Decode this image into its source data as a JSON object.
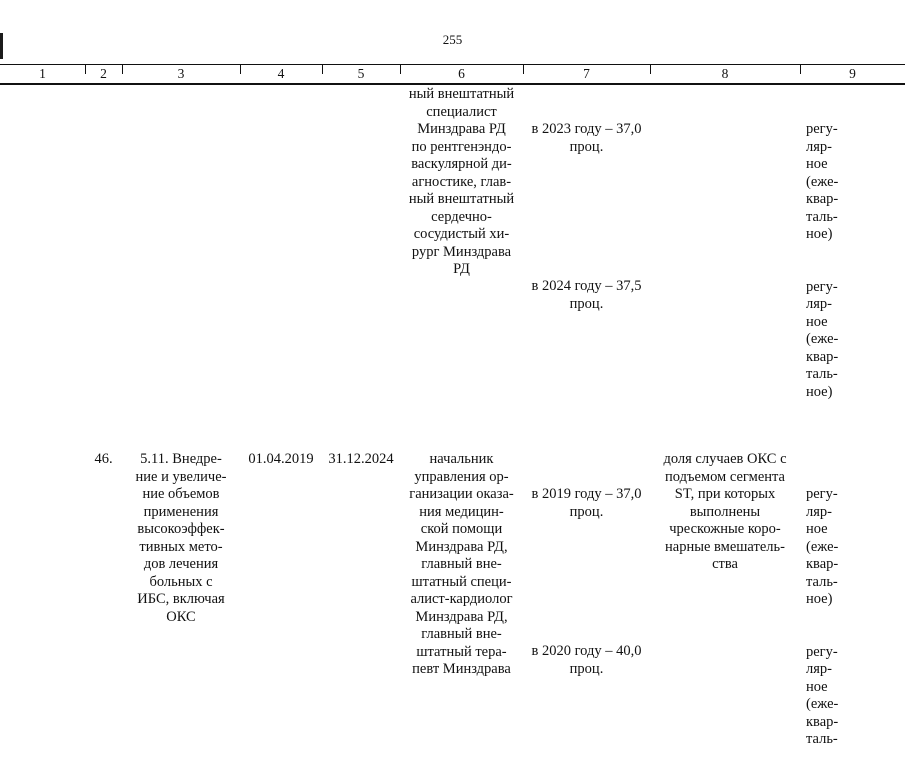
{
  "page": {
    "number": "255"
  },
  "table": {
    "headers": [
      "1",
      "2",
      "3",
      "4",
      "5",
      "6",
      "7",
      "8",
      "9"
    ],
    "rows": [
      {
        "num": "",
        "title": "",
        "date_start": "",
        "date_end": "",
        "responsible": "ный внештатный\nспециалист\nМинздрава РД\nпо рентгенэндо-\nваскулярной ди-\nагностике, глав-\nный внештатный\nсердечно-\nсосудистый хи-\nрург Минздрава\nРД",
        "value_blocks": [
          "в 2023 году – 37,0\nпроц.",
          "в 2024 году – 37,5\nпроц."
        ],
        "indicator": "",
        "monitoring_blocks": [
          "регу-\nляр-\nное\n(еже-\nквар-\nталь-\nное)",
          "регу-\nляр-\nное\n(еже-\nквар-\nталь-\nное)"
        ]
      },
      {
        "num": "46.",
        "title": "5.11. Внедре-\nние и увеличе-\nние объемов\nприменения\nвысокоэффек-\nтивных мето-\nдов лечения\nбольных с\nИБС, включая\nОКС",
        "date_start": "01.04.2019",
        "date_end": "31.12.2024",
        "responsible": "начальник\nуправления ор-\nганизации оказа-\nния медицин-\nской помощи\nМинздрава РД,\nглавный вне-\nштатный специ-\nалист-кардиолог\nМинздрава РД,\nглавный вне-\nштатный тера-\nпевт Минздрава",
        "value_blocks": [
          "в 2019 году – 37,0\nпроц.",
          "в 2020 году – 40,0\nпроц."
        ],
        "indicator": "доля случаев ОКС с\nподъемом сегмента\nST, при которых\nвыполнены\nчрескожные коро-\nнарные вмешатель-\nства",
        "monitoring_blocks": [
          "регу-\nляр-\nное\n(еже-\nквар-\nталь-\nное)",
          "регу-\nляр-\nное\n(еже-\nквар-\nталь-"
        ]
      }
    ]
  }
}
